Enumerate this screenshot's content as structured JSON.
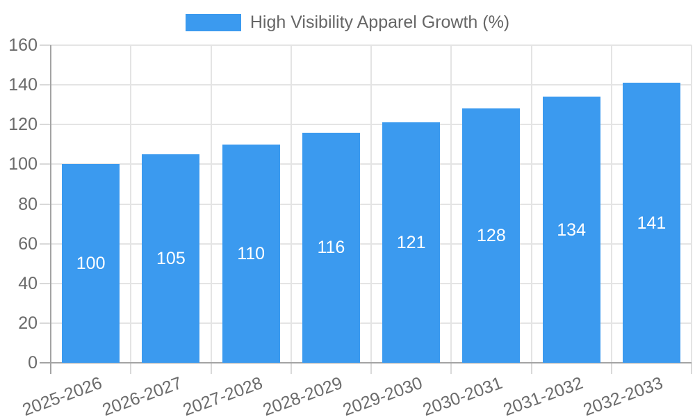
{
  "chart_data": {
    "type": "bar",
    "title": "High Visibility Apparel Growth (%)",
    "legend": {
      "position": "top",
      "label": "High Visibility Apparel Growth (%)"
    },
    "categories": [
      "2025-2026",
      "2026-2027",
      "2027-2028",
      "2028-2029",
      "2029-2030",
      "2030-2031",
      "2031-2032",
      "2032-2033"
    ],
    "values": [
      100,
      105,
      110,
      116,
      121,
      128,
      134,
      141
    ],
    "value_labels": [
      "100",
      "105",
      "110",
      "116",
      "121",
      "128",
      "134",
      "141"
    ],
    "xlabel": "",
    "ylabel": "",
    "ylim": [
      0,
      160
    ],
    "ytick_step": 20,
    "ytick_labels": [
      "0",
      "20",
      "40",
      "60",
      "80",
      "100",
      "120",
      "140",
      "160"
    ],
    "grid": true,
    "colors": {
      "bar": "#3B9AEF",
      "value_label": "#FFFFFF",
      "grid": "#E4E4E4",
      "axis": "#A3A3A3",
      "tick": "#D9D9D9",
      "tick_label": "#6B6B6B",
      "legend_text": "#666666",
      "background": "#FFFFFF"
    }
  }
}
